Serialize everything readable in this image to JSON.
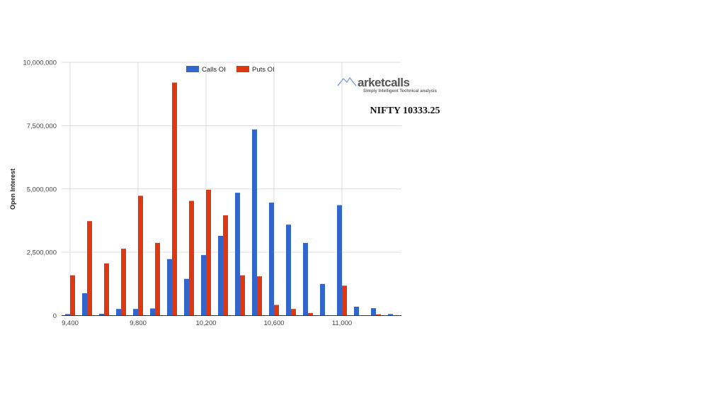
{
  "chart_data": {
    "type": "bar",
    "title": "",
    "xlabel": "",
    "ylabel": "Open Interest",
    "categories": [
      9400,
      9500,
      9600,
      9700,
      9800,
      9900,
      10000,
      10100,
      10200,
      10300,
      10400,
      10500,
      10600,
      10700,
      10800,
      10900,
      11000,
      11100,
      11200,
      11300
    ],
    "x_tick_labels": [
      "9,400",
      "9,800",
      "10,200",
      "10,600",
      "11,000"
    ],
    "x_tick_values": [
      9400,
      9800,
      10200,
      10600,
      11000
    ],
    "y_tick_labels": [
      "0",
      "2,500,000",
      "5,000,000",
      "7,500,000",
      "10,000,000"
    ],
    "y_tick_values": [
      0,
      2500000,
      5000000,
      7500000,
      10000000
    ],
    "ylim": [
      0,
      10000000
    ],
    "grid": true,
    "legend_position": "top",
    "series": [
      {
        "name": "Calls OI",
        "color": "#3366cc",
        "values": [
          60000,
          880000,
          70000,
          260000,
          260000,
          280000,
          2230000,
          1450000,
          2390000,
          3150000,
          4850000,
          7350000,
          4460000,
          3590000,
          2870000,
          1250000,
          4360000,
          350000,
          290000,
          60000
        ]
      },
      {
        "name": "Puts OI",
        "color": "#dc3912",
        "values": [
          1590000,
          3730000,
          2060000,
          2640000,
          4730000,
          2870000,
          9200000,
          4530000,
          4970000,
          3960000,
          1590000,
          1550000,
          420000,
          260000,
          100000,
          0,
          1180000,
          0,
          50000,
          0
        ]
      }
    ]
  },
  "watermark": {
    "logo_text": "arketcalls",
    "tagline": "Simply Intelligent Technical analysis"
  },
  "annotation": {
    "text": "NIFTY 10333.25"
  }
}
